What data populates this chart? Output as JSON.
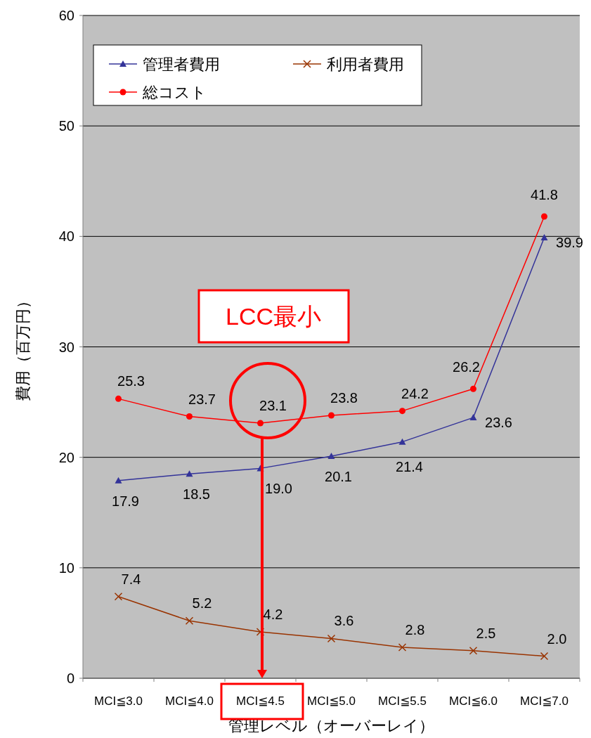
{
  "chart_data": {
    "type": "line",
    "xlabel": "管理レベル（オーバーレイ）",
    "ylabel": "費用（百万円）",
    "categories": [
      "MCI≦3.0",
      "MCI≦4.0",
      "MCI≦4.5",
      "MCI≦5.0",
      "MCI≦5.5",
      "MCI≦6.0",
      "MCI≦7.0"
    ],
    "series": [
      {
        "name": "管理者費用",
        "color": "#333399",
        "marker": "triangle",
        "values": [
          17.9,
          18.5,
          19.0,
          20.1,
          21.4,
          23.6,
          39.9
        ],
        "value_labels": [
          "17.9",
          "18.5",
          "19.0",
          "20.1",
          "21.4",
          "23.6",
          "39.9"
        ]
      },
      {
        "name": "利用者費用",
        "color": "#993300",
        "marker": "cross",
        "values": [
          7.4,
          5.2,
          4.2,
          3.6,
          2.8,
          2.5,
          2.0
        ],
        "value_labels": [
          "7.4",
          "5.2",
          "4.2",
          "3.6",
          "2.8",
          "2.5",
          "2.0"
        ]
      },
      {
        "name": "総コスト",
        "color": "#ff0000",
        "marker": "circle",
        "values": [
          25.3,
          23.7,
          23.1,
          23.8,
          24.2,
          26.2,
          41.8
        ],
        "value_labels": [
          "25.3",
          "23.7",
          "23.1",
          "23.8",
          "24.2",
          "26.2",
          "41.8"
        ]
      }
    ],
    "ylim": [
      0,
      60
    ],
    "yticks": [
      0,
      10,
      20,
      30,
      40,
      50,
      60
    ],
    "grid": "y",
    "legend": "top left",
    "annotations": [
      "LCC最小"
    ]
  }
}
